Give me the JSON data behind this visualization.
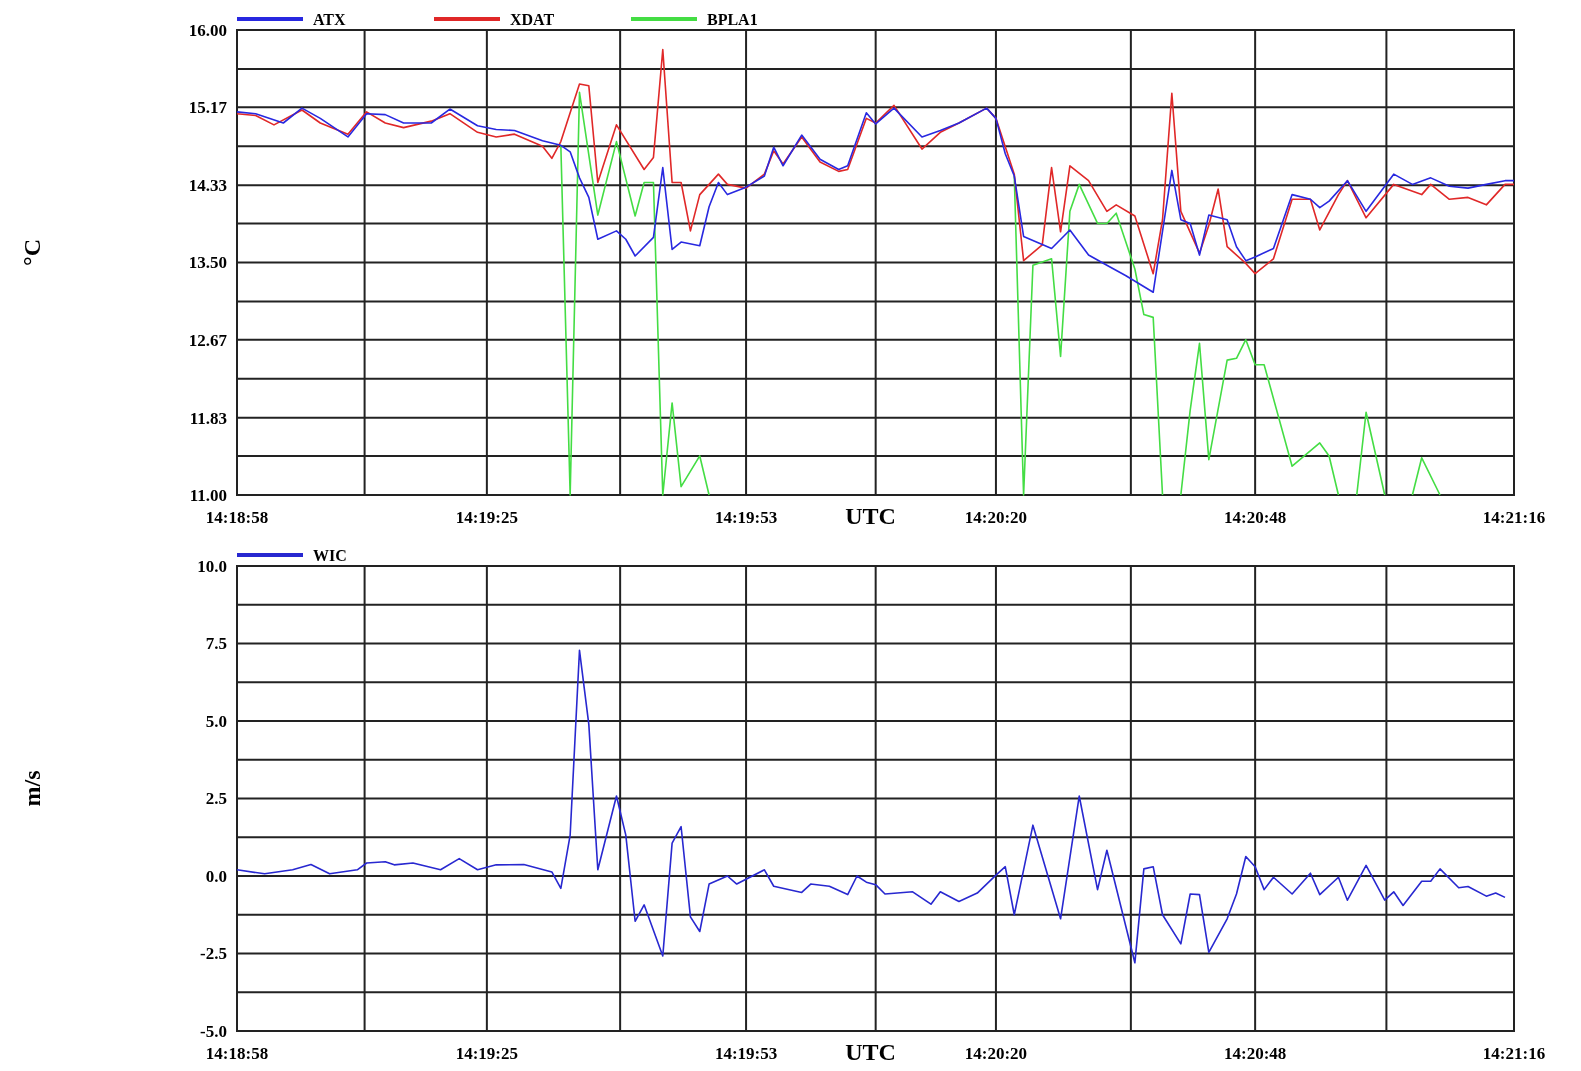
{
  "chart_data": [
    {
      "type": "line",
      "xlabel": "UTC",
      "ylabel": "°C",
      "grid": true,
      "legend": "top left",
      "xlim": [
        14.31611,
        14.35444
      ],
      "ylim": [
        11,
        16
      ],
      "xticks": [
        {
          "value": 14.31611,
          "label": "14:18:58"
        },
        {
          "value": 14.31994,
          "label": null
        },
        {
          "value": 14.32361,
          "label": "14:19:25"
        },
        {
          "value": 14.32761,
          "label": null
        },
        {
          "value": 14.33139,
          "label": "14:19:53"
        },
        {
          "value": 14.33528,
          "label": null
        },
        {
          "value": 14.33889,
          "label": "14:20:20"
        },
        {
          "value": 14.34294,
          "label": null
        },
        {
          "value": 14.34667,
          "label": "14:20:48"
        },
        {
          "value": 14.35061,
          "label": null
        },
        {
          "value": 14.35444,
          "label": "14:21:16"
        }
      ],
      "yticks": [
        {
          "value": 16,
          "label": "16.00"
        },
        {
          "value": 15.58,
          "label": null
        },
        15.17,
        {
          "value": 14.75,
          "label": null
        },
        14.33,
        {
          "value": 13.92,
          "label": null
        },
        {
          "value": 13.5,
          "label": "13.50"
        },
        {
          "value": 13.08,
          "label": null
        },
        12.67,
        {
          "value": 12.25,
          "label": null
        },
        11.83,
        {
          "value": 11.42,
          "label": null
        },
        {
          "value": 11,
          "label": "11.00"
        }
      ],
      "series": [
        {
          "name": "BPLA1",
          "color": "#44dd44",
          "x": [
            14.32583,
            14.32611,
            14.32639,
            14.32694,
            14.3275,
            14.32806,
            14.32833,
            14.32861,
            14.32889,
            14.32917,
            14.32944,
            14.33,
            14.33028,
            14.33056,
            14.33944,
            14.33972,
            14.34,
            14.34056,
            14.34083,
            14.34111,
            14.34139,
            14.34194,
            14.34222,
            14.3425,
            14.34306,
            14.34333,
            14.34361,
            14.34389,
            14.34417,
            14.34444,
            14.34472,
            14.345,
            14.34528,
            14.34583,
            14.34611,
            14.34639,
            14.34667,
            14.34694,
            14.34778,
            14.34861,
            14.34889,
            14.34917,
            14.34944,
            14.34972,
            14.35,
            14.35056,
            14.35083,
            14.35139,
            14.35167,
            14.35222
          ],
          "values": [
            14.76,
            11.0,
            15.33,
            14.01,
            14.8,
            14.0,
            14.36,
            14.36,
            11.0,
            11.99,
            11.09,
            11.42,
            11.0,
            null,
            14.43,
            11.0,
            13.47,
            13.54,
            12.49,
            14.05,
            14.34,
            13.92,
            13.92,
            14.03,
            13.43,
            12.94,
            12.91,
            11.0,
            null,
            11.0,
            11.91,
            12.63,
            11.38,
            12.45,
            12.47,
            12.67,
            12.4,
            12.4,
            11.31,
            11.56,
            11.42,
            11.0,
            null,
            11.0,
            11.89,
            11.0,
            null,
            11.0,
            11.4,
            11.0
          ]
        },
        {
          "name": "XDAT",
          "color": "#e02828",
          "x": [
            14.31611,
            14.31667,
            14.31722,
            14.31806,
            14.31861,
            14.31944,
            14.32,
            14.32056,
            14.32111,
            14.32194,
            14.3225,
            14.32333,
            14.32389,
            14.32444,
            14.32528,
            14.32556,
            14.32583,
            14.32639,
            14.32667,
            14.32694,
            14.3275,
            14.32833,
            14.32861,
            14.32889,
            14.32917,
            14.32944,
            14.32972,
            14.33,
            14.33056,
            14.33083,
            14.33139,
            14.33194,
            14.33222,
            14.3325,
            14.33306,
            14.33361,
            14.33417,
            14.33444,
            14.335,
            14.33528,
            14.33583,
            14.33667,
            14.33722,
            14.33778,
            14.33861,
            14.33889,
            14.33944,
            14.33972,
            14.34028,
            14.34056,
            14.34083,
            14.34111,
            14.34167,
            14.34222,
            14.3425,
            14.34306,
            14.34361,
            14.34389,
            14.34417,
            14.34444,
            14.345,
            14.34528,
            14.34556,
            14.34583,
            14.34639,
            14.34667,
            14.34722,
            14.34778,
            14.34833,
            14.34861,
            14.34917,
            14.34944,
            14.35,
            14.35083,
            14.35167,
            14.35194,
            14.3525,
            14.35306,
            14.35361,
            14.35417,
            14.35444
          ],
          "values": [
            15.1,
            15.08,
            14.98,
            15.14,
            15.0,
            14.88,
            15.12,
            15.0,
            14.95,
            15.02,
            15.1,
            14.9,
            14.85,
            14.88,
            14.75,
            14.62,
            14.8,
            15.42,
            15.4,
            14.36,
            14.98,
            14.5,
            14.63,
            15.79,
            14.36,
            14.36,
            13.84,
            14.23,
            14.45,
            14.34,
            14.3,
            14.45,
            14.7,
            14.56,
            14.85,
            14.58,
            14.48,
            14.5,
            15.05,
            15.0,
            15.19,
            14.72,
            14.9,
            15.0,
            15.16,
            15.05,
            14.45,
            13.52,
            13.69,
            14.52,
            13.83,
            14.54,
            14.38,
            14.05,
            14.12,
            14.0,
            13.38,
            13.96,
            15.32,
            14.05,
            13.6,
            13.9,
            14.29,
            13.67,
            13.49,
            13.38,
            13.54,
            14.18,
            14.18,
            13.85,
            14.23,
            14.38,
            13.98,
            14.34,
            14.23,
            14.34,
            14.18,
            14.2,
            14.12,
            14.34,
            14.34
          ]
        },
        {
          "name": "ATX",
          "color": "#2828e0",
          "x": [
            14.31611,
            14.31667,
            14.3175,
            14.31806,
            14.31861,
            14.31944,
            14.32,
            14.32056,
            14.32111,
            14.32194,
            14.3225,
            14.32333,
            14.32389,
            14.32444,
            14.32528,
            14.32583,
            14.32611,
            14.32639,
            14.32667,
            14.32694,
            14.3275,
            14.32778,
            14.32806,
            14.32861,
            14.32889,
            14.32917,
            14.32944,
            14.33,
            14.33028,
            14.33056,
            14.33083,
            14.33139,
            14.33194,
            14.33222,
            14.3325,
            14.33306,
            14.33361,
            14.33417,
            14.33444,
            14.335,
            14.33528,
            14.33583,
            14.33667,
            14.33722,
            14.33778,
            14.33861,
            14.33889,
            14.33917,
            14.33944,
            14.33972,
            14.34056,
            14.34111,
            14.34167,
            14.34222,
            14.34278,
            14.34361,
            14.34417,
            14.34444,
            14.34472,
            14.345,
            14.34528,
            14.34583,
            14.34611,
            14.34639,
            14.34667,
            14.34722,
            14.34778,
            14.34833,
            14.34861,
            14.34889,
            14.34944,
            14.35,
            14.35083,
            14.35139,
            14.35194,
            14.3525,
            14.35306,
            14.35361,
            14.35417,
            14.35444
          ],
          "values": [
            15.12,
            15.1,
            15.0,
            15.16,
            15.05,
            14.85,
            15.1,
            15.09,
            15.0,
            15.0,
            15.15,
            14.97,
            14.93,
            14.92,
            14.81,
            14.76,
            14.69,
            14.41,
            14.2,
            13.75,
            13.84,
            13.75,
            13.57,
            13.77,
            14.52,
            13.64,
            13.72,
            13.68,
            14.1,
            14.36,
            14.23,
            14.31,
            14.43,
            14.74,
            14.54,
            14.87,
            14.61,
            14.5,
            14.54,
            15.11,
            14.99,
            15.16,
            14.85,
            14.92,
            15.0,
            15.16,
            15.05,
            14.67,
            14.43,
            13.78,
            13.65,
            13.85,
            13.58,
            13.47,
            13.36,
            13.18,
            14.49,
            13.96,
            13.92,
            13.58,
            14.01,
            13.96,
            13.67,
            13.52,
            13.56,
            13.65,
            14.23,
            14.18,
            14.09,
            14.16,
            14.38,
            14.05,
            14.45,
            14.34,
            14.41,
            14.32,
            14.3,
            14.34,
            14.38,
            14.38
          ]
        }
      ]
    },
    {
      "type": "line",
      "xlabel": "UTC",
      "ylabel": "m/s",
      "grid": true,
      "legend": "top left",
      "xlim": [
        14.31611,
        14.35444
      ],
      "ylim": [
        -5,
        10
      ],
      "xticks": [
        {
          "value": 14.31611,
          "label": "14:18:58"
        },
        {
          "value": 14.31994,
          "label": null
        },
        {
          "value": 14.32361,
          "label": "14:19:25"
        },
        {
          "value": 14.32761,
          "label": null
        },
        {
          "value": 14.33139,
          "label": "14:19:53"
        },
        {
          "value": 14.33528,
          "label": null
        },
        {
          "value": 14.33889,
          "label": "14:20:20"
        },
        {
          "value": 14.34294,
          "label": null
        },
        {
          "value": 14.34667,
          "label": "14:20:48"
        },
        {
          "value": 14.35061,
          "label": null
        },
        {
          "value": 14.35444,
          "label": "14:21:16"
        }
      ],
      "yticks": [
        {
          "value": 10,
          "label": "10.0"
        },
        {
          "value": 8.75,
          "label": null
        },
        7.5,
        {
          "value": 6.25,
          "label": null
        },
        {
          "value": 5,
          "label": "5.0"
        },
        {
          "value": 3.75,
          "label": null
        },
        2.5,
        {
          "value": 1.25,
          "label": null
        },
        {
          "value": 0,
          "label": "0.0"
        },
        {
          "value": -1.25,
          "label": null
        },
        -2.5,
        {
          "value": -3.75,
          "label": null
        },
        {
          "value": -5,
          "label": "-5.0"
        }
      ],
      "series": [
        {
          "name": "WIC",
          "color": "#2828d0",
          "x": [
            14.31611,
            14.31694,
            14.31778,
            14.31833,
            14.31889,
            14.31972,
            14.32,
            14.32056,
            14.32083,
            14.32139,
            14.32222,
            14.32278,
            14.32333,
            14.32389,
            14.32472,
            14.32556,
            14.32583,
            14.32611,
            14.32639,
            14.32667,
            14.32694,
            14.3275,
            14.32778,
            14.32806,
            14.32833,
            14.32889,
            14.32917,
            14.32944,
            14.32972,
            14.33,
            14.33028,
            14.33083,
            14.33111,
            14.33194,
            14.33222,
            14.33306,
            14.33333,
            14.33389,
            14.33444,
            14.33472,
            14.335,
            14.33528,
            14.33556,
            14.33639,
            14.33694,
            14.33722,
            14.33778,
            14.33833,
            14.33889,
            14.33917,
            14.33944,
            14.34,
            14.34083,
            14.34139,
            14.34194,
            14.34222,
            14.34306,
            14.34333,
            14.34361,
            14.34389,
            14.34444,
            14.34472,
            14.345,
            14.34528,
            14.34583,
            14.34611,
            14.34639,
            14.34667,
            14.34694,
            14.34722,
            14.34778,
            14.34833,
            14.34861,
            14.34917,
            14.34944,
            14.35,
            14.35056,
            14.35083,
            14.35111,
            14.35167,
            14.35194,
            14.35222,
            14.35278,
            14.35306,
            14.35361,
            14.35389,
            14.35417
          ],
          "values": [
            0.2,
            0.07,
            0.2,
            0.37,
            0.07,
            0.2,
            0.42,
            0.46,
            0.36,
            0.42,
            0.2,
            0.56,
            0.2,
            0.36,
            0.37,
            0.13,
            -0.4,
            1.32,
            7.28,
            4.89,
            0.2,
            2.58,
            1.32,
            -1.46,
            -0.93,
            -2.58,
            1.06,
            1.59,
            -1.32,
            -1.79,
            -0.26,
            0.0,
            -0.26,
            0.2,
            -0.33,
            -0.53,
            -0.26,
            -0.33,
            -0.6,
            0.0,
            -0.2,
            -0.28,
            -0.58,
            -0.51,
            -0.91,
            -0.51,
            -0.82,
            -0.55,
            0.03,
            0.3,
            -1.25,
            1.64,
            -1.38,
            2.58,
            -0.44,
            0.83,
            -2.8,
            0.23,
            0.3,
            -1.25,
            -2.19,
            -0.58,
            -0.6,
            -2.46,
            -1.38,
            -0.58,
            0.63,
            0.3,
            -0.44,
            -0.04,
            -0.58,
            0.09,
            -0.6,
            -0.04,
            -0.78,
            0.34,
            -0.78,
            -0.51,
            -0.95,
            -0.17,
            -0.17,
            0.23,
            -0.38,
            -0.34,
            -0.65,
            -0.55,
            -0.69
          ]
        }
      ]
    }
  ]
}
